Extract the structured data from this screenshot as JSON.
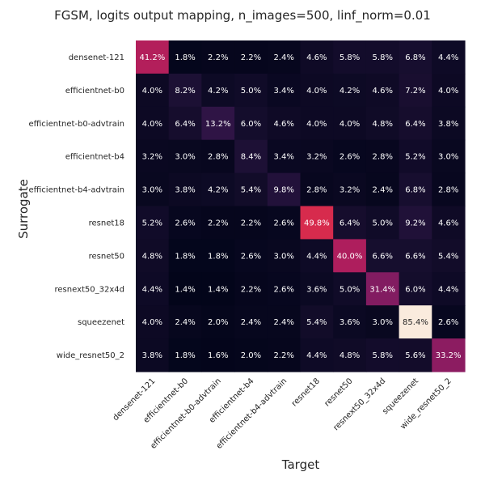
{
  "chart_data": {
    "type": "heatmap",
    "title": "FGSM, logits output mapping, n_images=500, linf_norm=0.01",
    "xlabel": "Target",
    "ylabel": "Surrogate",
    "x_categories": [
      "densenet-121",
      "efficientnet-b0",
      "efficientnet-b0-advtrain",
      "efficientnet-b4",
      "efficientnet-b4-advtrain",
      "resnet18",
      "resnet50",
      "resnext50_32x4d",
      "squeezenet",
      "wide_resnet50_2"
    ],
    "y_categories": [
      "densenet-121",
      "efficientnet-b0",
      "efficientnet-b0-advtrain",
      "efficientnet-b4",
      "efficientnet-b4-advtrain",
      "resnet18",
      "resnet50",
      "resnext50_32x4d",
      "squeezenet",
      "wide_resnet50_2"
    ],
    "values": [
      [
        41.2,
        1.8,
        2.2,
        2.2,
        2.4,
        4.6,
        5.8,
        5.8,
        6.8,
        4.4
      ],
      [
        4.0,
        8.2,
        4.2,
        5.0,
        3.4,
        4.0,
        4.2,
        4.6,
        7.2,
        4.0
      ],
      [
        4.0,
        6.4,
        13.2,
        6.0,
        4.6,
        4.0,
        4.0,
        4.8,
        6.4,
        3.8
      ],
      [
        3.2,
        3.0,
        2.8,
        8.4,
        3.4,
        3.2,
        2.6,
        2.8,
        5.2,
        3.0
      ],
      [
        3.0,
        3.8,
        4.2,
        5.4,
        9.8,
        2.8,
        3.2,
        2.4,
        6.8,
        2.8
      ],
      [
        5.2,
        2.6,
        2.2,
        2.2,
        2.6,
        49.8,
        6.4,
        5.0,
        9.2,
        4.6
      ],
      [
        4.8,
        1.8,
        1.8,
        2.6,
        3.0,
        4.4,
        40.0,
        6.6,
        6.6,
        5.4
      ],
      [
        4.4,
        1.4,
        1.4,
        2.2,
        2.6,
        3.6,
        5.0,
        31.4,
        6.0,
        4.4
      ],
      [
        4.0,
        2.4,
        2.0,
        2.4,
        2.4,
        5.4,
        3.6,
        3.0,
        85.4,
        2.6
      ],
      [
        3.8,
        1.8,
        1.6,
        2.0,
        2.2,
        4.4,
        4.8,
        5.8,
        5.6,
        33.2
      ]
    ],
    "value_format": "percent_1dp",
    "colormap": "rocket",
    "colorbar": false,
    "grid": false
  }
}
